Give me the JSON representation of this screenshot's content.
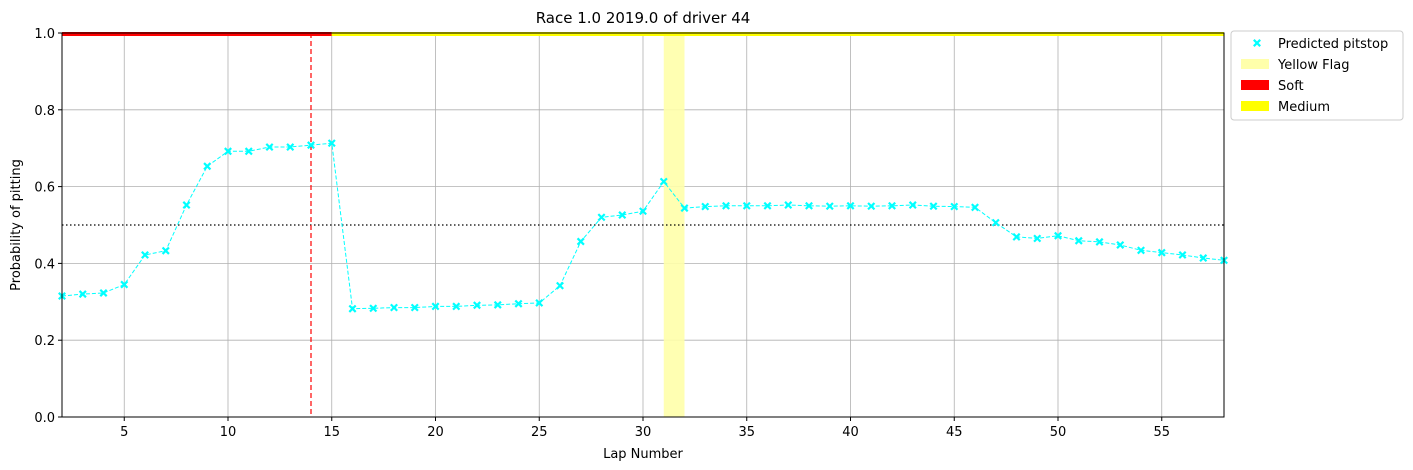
{
  "chart_data": {
    "type": "line",
    "title": "Race 1.0 2019.0 of driver 44",
    "xlabel": "Lap Number",
    "ylabel": "Probability of pitting",
    "xlim": [
      2,
      58
    ],
    "ylim": [
      0,
      1
    ],
    "xticks": [
      5,
      10,
      15,
      20,
      25,
      30,
      35,
      40,
      45,
      50,
      55
    ],
    "xtick_labels": [
      "5",
      "10",
      "15",
      "20",
      "25",
      "30",
      "35",
      "40",
      "45",
      "50",
      "55"
    ],
    "yticks": [
      0,
      0.2,
      0.4,
      0.6,
      0.8,
      1.0
    ],
    "ytick_labels": [
      "0.0",
      "0.2",
      "0.4",
      "0.6",
      "0.8",
      "1.0"
    ],
    "grid": true,
    "legend_placement": "outside-top-right",
    "series": [
      {
        "name": "Predicted pitstop",
        "color": "#00ffff",
        "marker": "x",
        "x": [
          2,
          3,
          4,
          5,
          6,
          7,
          8,
          9,
          10,
          11,
          12,
          13,
          14,
          15,
          16,
          17,
          18,
          19,
          20,
          21,
          22,
          23,
          24,
          25,
          26,
          27,
          28,
          29,
          30,
          31,
          32,
          33,
          34,
          35,
          36,
          37,
          38,
          39,
          40,
          41,
          42,
          43,
          44,
          45,
          46,
          47,
          48,
          49,
          50,
          51,
          52,
          53,
          54,
          55,
          56,
          57,
          58
        ],
        "y": [
          0.315,
          0.32,
          0.323,
          0.345,
          0.422,
          0.433,
          0.552,
          0.653,
          0.692,
          0.692,
          0.703,
          0.703,
          0.708,
          0.713,
          0.282,
          0.283,
          0.285,
          0.285,
          0.288,
          0.288,
          0.291,
          0.292,
          0.295,
          0.297,
          0.342,
          0.457,
          0.52,
          0.526,
          0.536,
          0.613,
          0.544,
          0.548,
          0.55,
          0.55,
          0.55,
          0.552,
          0.55,
          0.549,
          0.55,
          0.549,
          0.55,
          0.552,
          0.549,
          0.548,
          0.546,
          0.506,
          0.469,
          0.465,
          0.472,
          0.459,
          0.456,
          0.448,
          0.434,
          0.428,
          0.422,
          0.414,
          0.408
        ]
      }
    ],
    "threshold": {
      "y": 0.5,
      "color": "#000000",
      "style": "dotted"
    },
    "pit_lap": {
      "x": 14,
      "color": "#ff0000",
      "style": "dashed"
    },
    "yellow_flags": [
      {
        "x0": 31,
        "x1": 32,
        "color": "#ffffaa"
      }
    ],
    "tyres": [
      {
        "name": "Soft",
        "x0": 2,
        "x1": 15,
        "color": "#ff0000"
      },
      {
        "name": "Medium",
        "x0": 15,
        "x1": 58,
        "color": "#ffff00"
      }
    ],
    "legend": [
      {
        "label": "Predicted pitstop",
        "kind": "marker",
        "color": "#00ffff"
      },
      {
        "label": "Yellow Flag",
        "kind": "patch",
        "color": "#ffffaa"
      },
      {
        "label": "Soft",
        "kind": "patch",
        "color": "#ff0000"
      },
      {
        "label": "Medium",
        "kind": "patch",
        "color": "#ffff00"
      }
    ]
  }
}
